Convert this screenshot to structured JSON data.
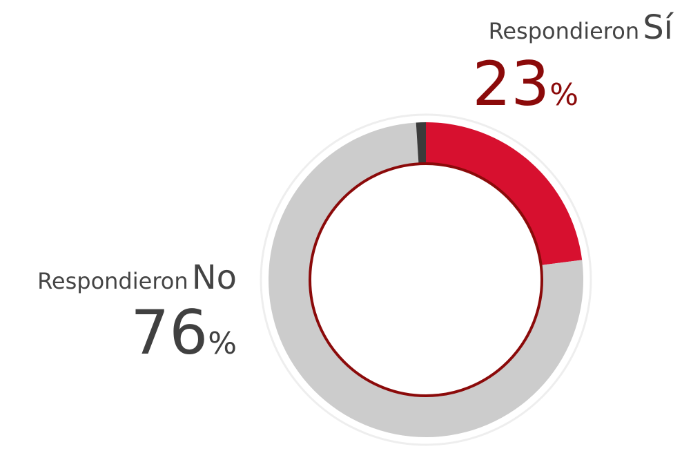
{
  "chart_data": {
    "type": "donut",
    "label_prefix": "Respondieron",
    "unit": "%",
    "categories": [
      "Sí",
      "No",
      null
    ],
    "values": [
      23,
      76,
      1
    ],
    "colors": [
      "#d7102f",
      "#cccccc",
      "#3b3b3b"
    ]
  }
}
